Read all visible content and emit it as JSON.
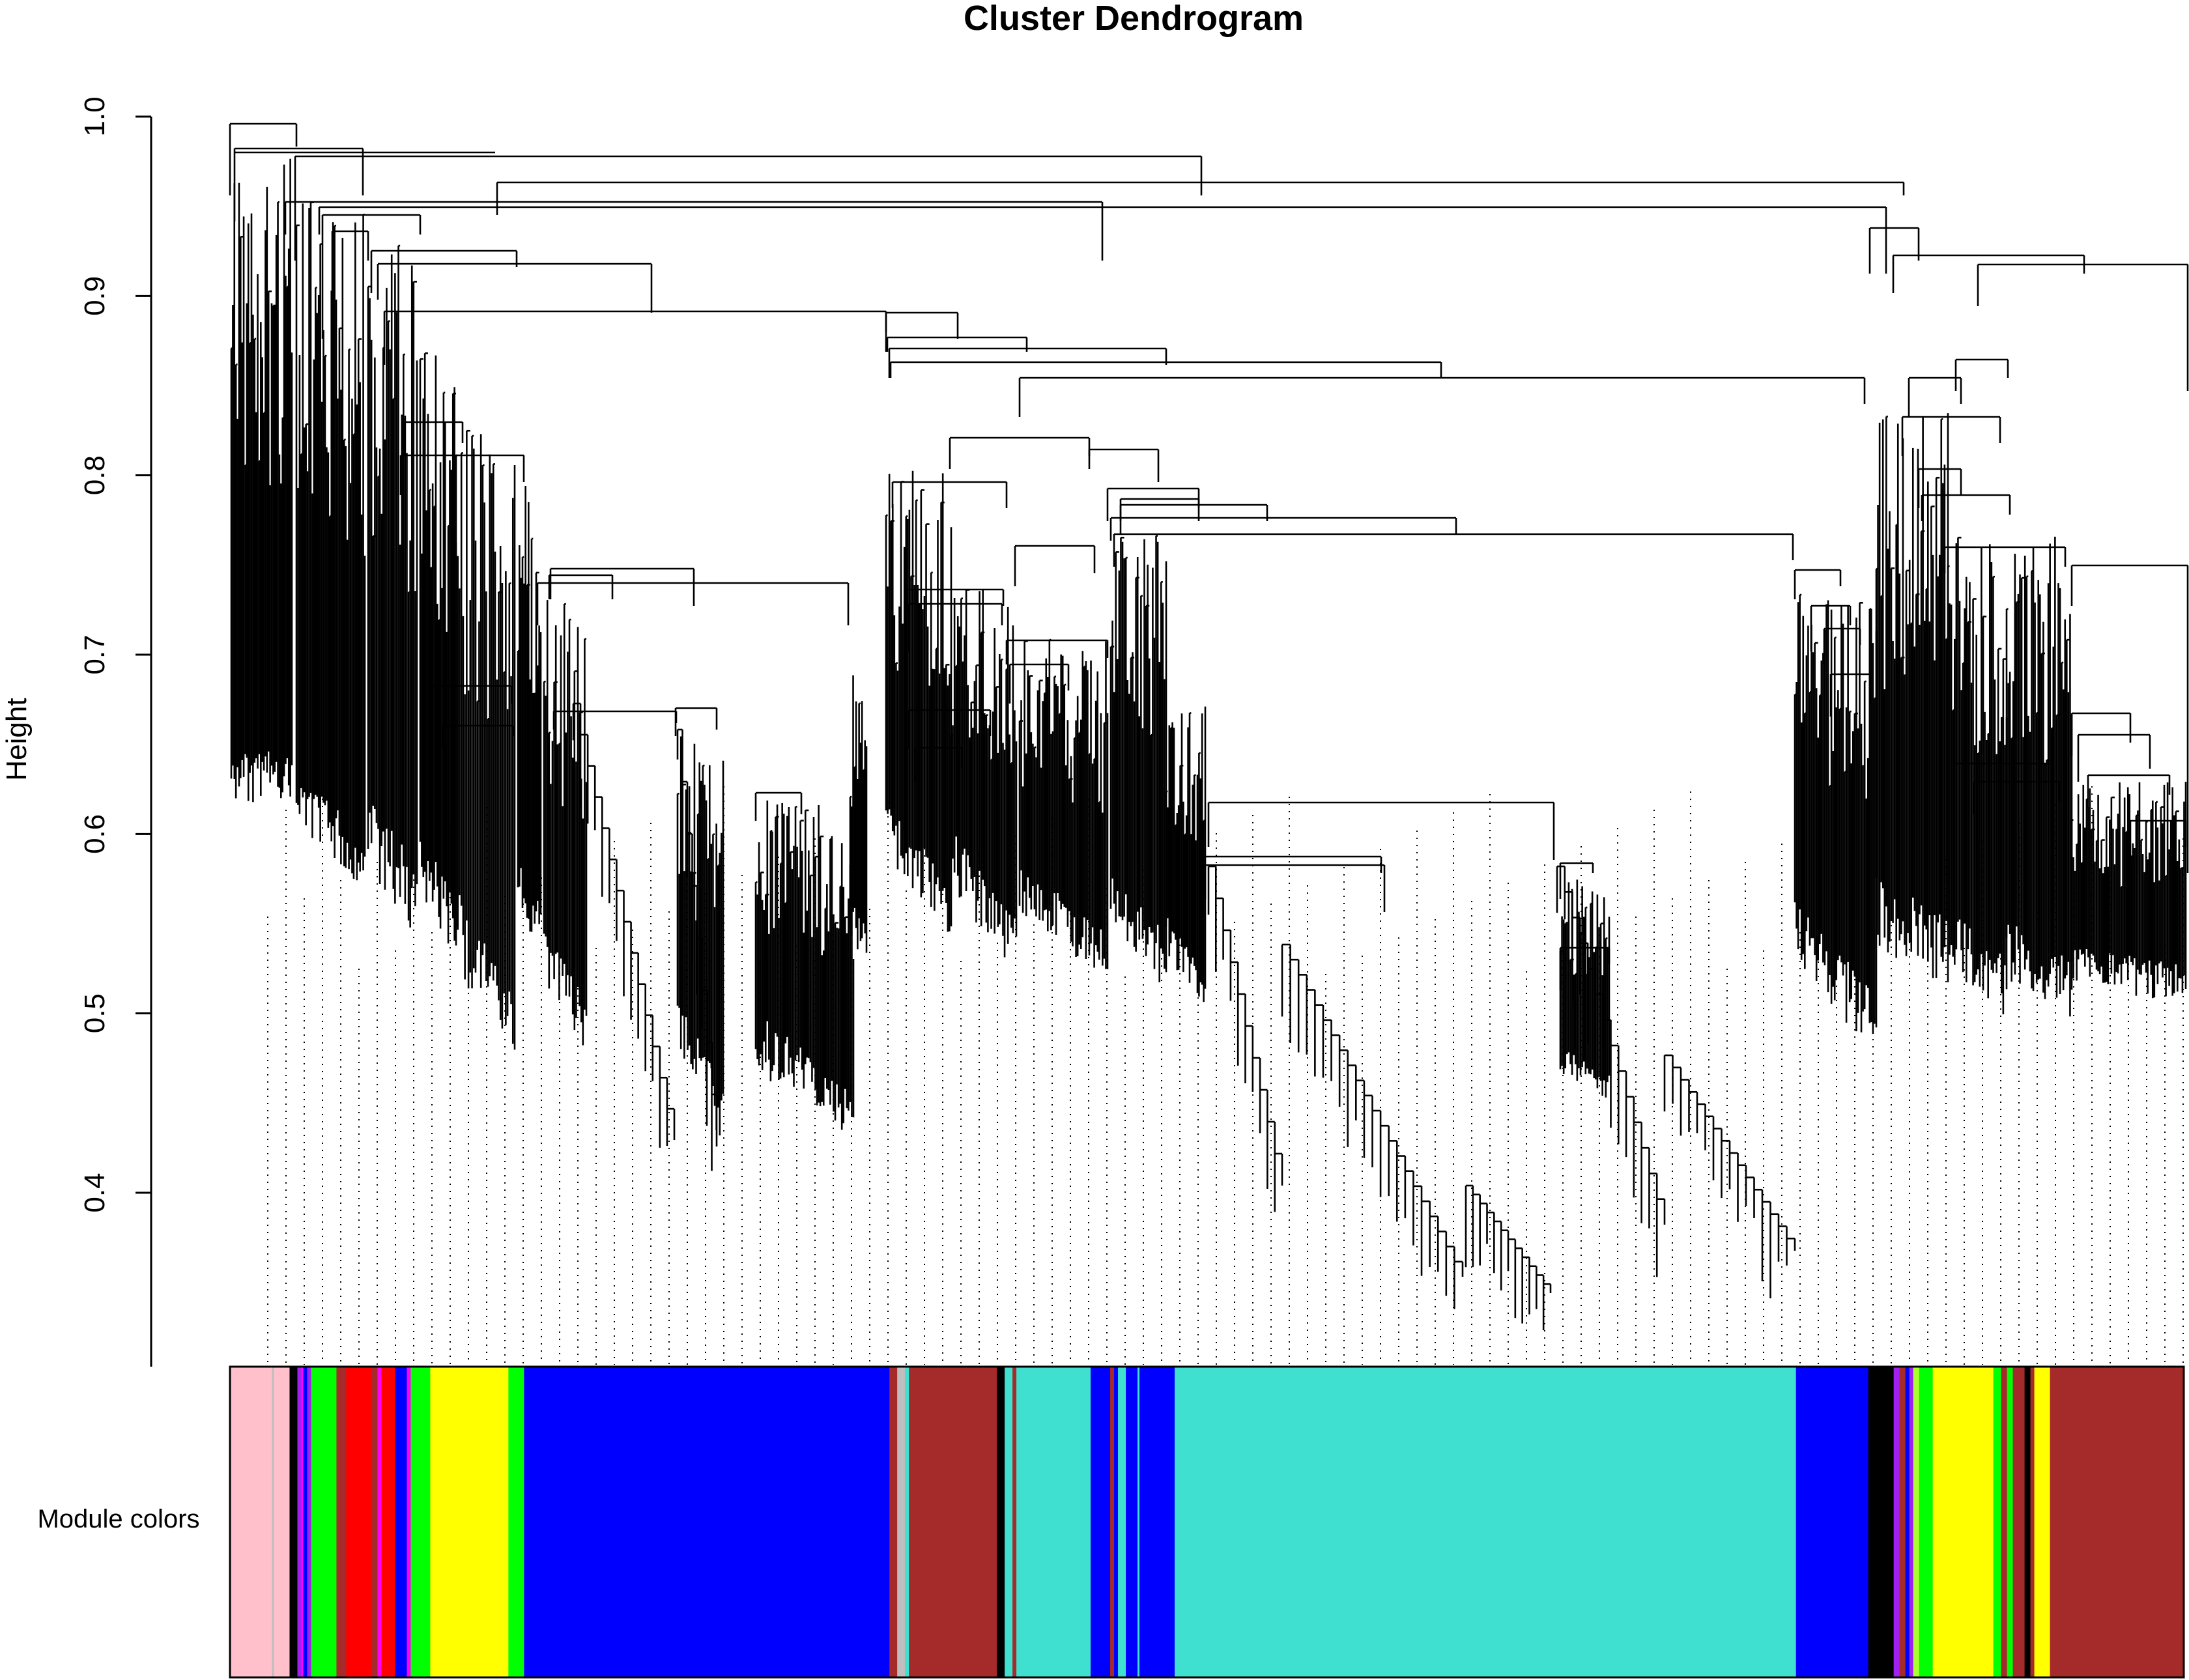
{
  "chart_data": {
    "type": "dendrogram",
    "title": "Cluster Dendrogram",
    "ylabel": "Height",
    "xlabel": "",
    "ylim": [
      0.3,
      1.0
    ],
    "yticks": [
      0.4,
      0.5,
      0.6,
      0.7,
      0.8,
      0.9,
      1.0
    ],
    "ytick_labels": [
      "0.4",
      "0.5",
      "0.6",
      "0.7",
      "0.8",
      "0.9",
      "1.0"
    ],
    "color_bar_label": "Module colors",
    "module_colors": {
      "pink": "#ffc0cb",
      "black": "#000000",
      "purple": "#a020f0",
      "green": "#00ff00",
      "brown": "#a52a2a",
      "red": "#ff0000",
      "magenta": "#ff00ff",
      "blue": "#0000ff",
      "yellow": "#ffff00",
      "turquoise": "#40e0d0",
      "grey": "#bebebe",
      "greenyellow": "#adff2f"
    },
    "module_segments": [
      {
        "module": "pink",
        "from": 0.0,
        "to": 0.0215
      },
      {
        "module": "grey",
        "from": 0.0215,
        "to": 0.0225
      },
      {
        "module": "pink",
        "from": 0.0225,
        "to": 0.0205
      },
      {
        "module": "pink",
        "from": 0.0225,
        "to": 0.0305
      },
      {
        "module": "black",
        "from": 0.0305,
        "to": 0.0345
      },
      {
        "module": "purple",
        "from": 0.0345,
        "to": 0.0365
      },
      {
        "module": "magenta",
        "from": 0.0365,
        "to": 0.0375
      },
      {
        "module": "blue",
        "from": 0.0375,
        "to": 0.0395
      },
      {
        "module": "purple",
        "from": 0.0395,
        "to": 0.0415
      },
      {
        "module": "green",
        "from": 0.0415,
        "to": 0.0545
      },
      {
        "module": "brown",
        "from": 0.0545,
        "to": 0.0595
      },
      {
        "module": "red",
        "from": 0.0595,
        "to": 0.0725
      },
      {
        "module": "brown",
        "from": 0.0725,
        "to": 0.0755
      },
      {
        "module": "magenta",
        "from": 0.0755,
        "to": 0.0775
      },
      {
        "module": "red",
        "from": 0.0775,
        "to": 0.0845
      },
      {
        "module": "blue",
        "from": 0.0845,
        "to": 0.0905
      },
      {
        "module": "magenta",
        "from": 0.0905,
        "to": 0.0925
      },
      {
        "module": "green",
        "from": 0.0925,
        "to": 0.1025
      },
      {
        "module": "yellow",
        "from": 0.1025,
        "to": 0.1425
      },
      {
        "module": "green",
        "from": 0.1425,
        "to": 0.1505
      },
      {
        "module": "blue",
        "from": 0.1505,
        "to": 0.3375
      },
      {
        "module": "brown",
        "from": 0.3375,
        "to": 0.3415
      },
      {
        "module": "grey",
        "from": 0.3415,
        "to": 0.3455
      },
      {
        "module": "turquoise",
        "from": 0.3455,
        "to": 0.3475
      },
      {
        "module": "brown",
        "from": 0.3475,
        "to": 0.3925
      },
      {
        "module": "black",
        "from": 0.3925,
        "to": 0.3965
      },
      {
        "module": "turquoise",
        "from": 0.3965,
        "to": 0.4005
      },
      {
        "module": "brown",
        "from": 0.4005,
        "to": 0.4025
      },
      {
        "module": "turquoise",
        "from": 0.4025,
        "to": 0.4405
      },
      {
        "module": "blue",
        "from": 0.4405,
        "to": 0.4505
      },
      {
        "module": "brown",
        "from": 0.4505,
        "to": 0.4525
      },
      {
        "module": "blue",
        "from": 0.4525,
        "to": 0.4545
      },
      {
        "module": "turquoise",
        "from": 0.4545,
        "to": 0.4585
      },
      {
        "module": "blue",
        "from": 0.4585,
        "to": 0.4645
      },
      {
        "module": "turquoise",
        "from": 0.4645,
        "to": 0.4655
      },
      {
        "module": "blue",
        "from": 0.4655,
        "to": 0.4835
      },
      {
        "module": "turquoise",
        "from": 0.4835,
        "to": 0.8015
      },
      {
        "module": "blue",
        "from": 0.8015,
        "to": 0.8385
      },
      {
        "module": "black",
        "from": 0.8385,
        "to": 0.8515
      },
      {
        "module": "purple",
        "from": 0.8515,
        "to": 0.8545
      },
      {
        "module": "brown",
        "from": 0.8545,
        "to": 0.8575
      },
      {
        "module": "blue",
        "from": 0.8575,
        "to": 0.8595
      },
      {
        "module": "purple",
        "from": 0.8595,
        "to": 0.8615
      },
      {
        "module": "greenyellow",
        "from": 0.8615,
        "to": 0.8645
      },
      {
        "module": "green",
        "from": 0.8645,
        "to": 0.8715
      },
      {
        "module": "yellow",
        "from": 0.8715,
        "to": 0.9025
      },
      {
        "module": "green",
        "from": 0.9025,
        "to": 0.9065
      },
      {
        "module": "brown",
        "from": 0.9065,
        "to": 0.9095
      },
      {
        "module": "green",
        "from": 0.9095,
        "to": 0.9125
      },
      {
        "module": "brown",
        "from": 0.9125,
        "to": 0.9185
      },
      {
        "module": "black",
        "from": 0.9185,
        "to": 0.9215
      },
      {
        "module": "brown",
        "from": 0.9215,
        "to": 0.9235
      },
      {
        "module": "yellow",
        "from": 0.9235,
        "to": 0.9315
      },
      {
        "module": "brown",
        "from": 0.9315,
        "to": 1.0
      }
    ]
  }
}
